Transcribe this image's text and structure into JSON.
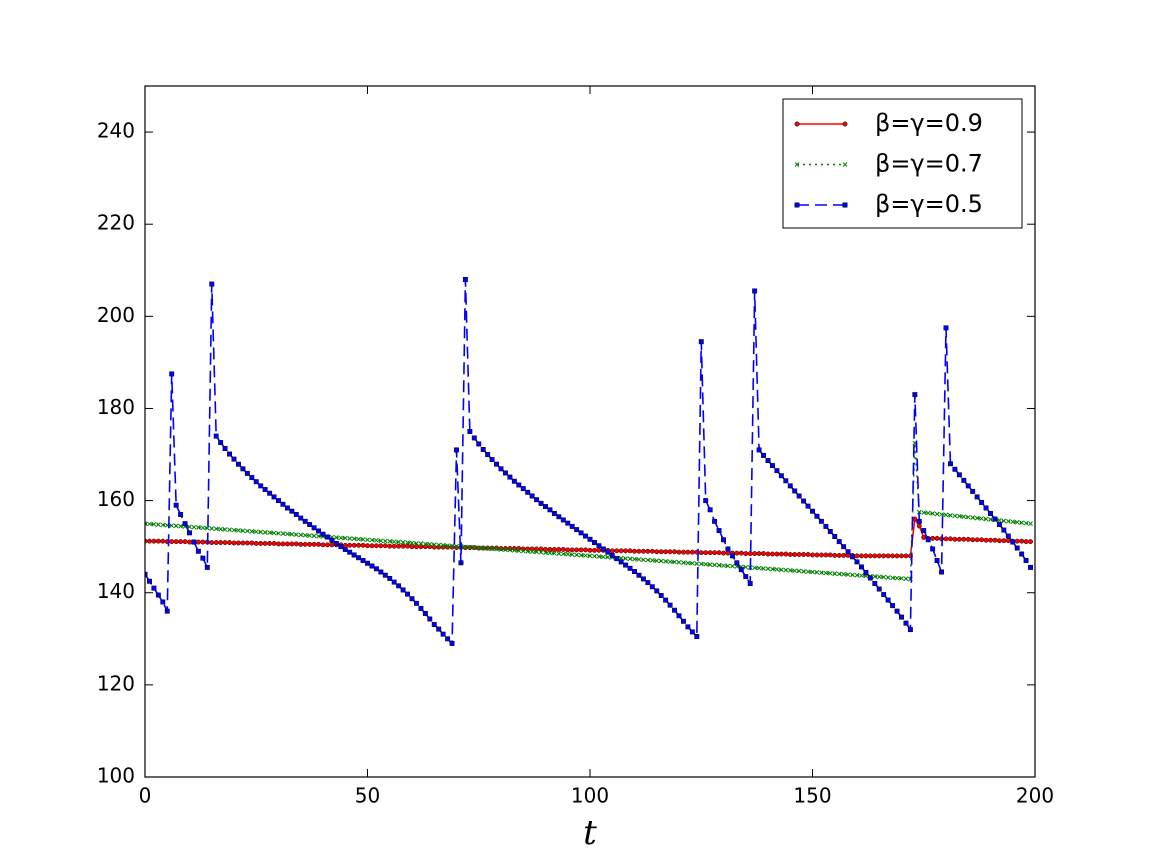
{
  "chart_data": {
    "type": "line",
    "xlabel": "t",
    "xlim": [
      0,
      200
    ],
    "ylim": [
      100,
      250
    ],
    "xticks": [
      0,
      50,
      100,
      150,
      200
    ],
    "yticks": [
      100,
      120,
      140,
      160,
      180,
      200,
      220,
      240
    ],
    "legend": "upper right",
    "x": [
      0,
      1,
      2,
      3,
      4,
      5,
      6,
      7,
      8,
      9,
      10,
      11,
      12,
      13,
      14,
      15,
      16,
      17,
      18,
      19,
      20,
      21,
      22,
      23,
      24,
      25,
      26,
      27,
      28,
      29,
      30,
      31,
      32,
      33,
      34,
      35,
      36,
      37,
      38,
      39,
      40,
      41,
      42,
      43,
      44,
      45,
      46,
      47,
      48,
      49,
      50,
      51,
      52,
      53,
      54,
      55,
      56,
      57,
      58,
      59,
      60,
      61,
      62,
      63,
      64,
      65,
      66,
      67,
      68,
      69,
      70,
      71,
      72,
      73,
      74,
      75,
      76,
      77,
      78,
      79,
      80,
      81,
      82,
      83,
      84,
      85,
      86,
      87,
      88,
      89,
      90,
      91,
      92,
      93,
      94,
      95,
      96,
      97,
      98,
      99,
      100,
      101,
      102,
      103,
      104,
      105,
      106,
      107,
      108,
      109,
      110,
      111,
      112,
      113,
      114,
      115,
      116,
      117,
      118,
      119,
      120,
      121,
      122,
      123,
      124,
      125,
      126,
      127,
      128,
      129,
      130,
      131,
      132,
      133,
      134,
      135,
      136,
      137,
      138,
      139,
      140,
      141,
      142,
      143,
      144,
      145,
      146,
      147,
      148,
      149,
      150,
      151,
      152,
      153,
      154,
      155,
      156,
      157,
      158,
      159,
      160,
      161,
      162,
      163,
      164,
      165,
      166,
      167,
      168,
      169,
      170,
      171,
      172,
      173,
      174,
      175,
      176,
      177,
      178,
      179,
      180,
      181,
      182,
      183,
      184,
      185,
      186,
      187,
      188,
      189,
      190,
      191,
      192,
      193,
      194,
      195,
      196,
      197,
      198,
      199
    ],
    "series": [
      {
        "name": "β=γ=0.9",
        "color": "#ff0000",
        "marker": "circle",
        "linestyle": "solid",
        "values": [
          151.2,
          151.2,
          151.2,
          151.2,
          151.2,
          151.1,
          151.1,
          151.1,
          151.1,
          151.1,
          151.0,
          151.0,
          151.0,
          151.0,
          151.0,
          150.9,
          150.9,
          150.9,
          150.9,
          150.9,
          150.8,
          150.8,
          150.8,
          150.8,
          150.8,
          150.7,
          150.7,
          150.7,
          150.7,
          150.7,
          150.6,
          150.6,
          150.6,
          150.6,
          150.6,
          150.5,
          150.5,
          150.5,
          150.5,
          150.5,
          150.4,
          150.4,
          150.4,
          150.4,
          150.4,
          150.3,
          150.3,
          150.3,
          150.3,
          150.3,
          150.2,
          150.2,
          150.2,
          150.2,
          150.2,
          150.1,
          150.1,
          150.1,
          150.1,
          150.1,
          150.0,
          150.0,
          150.0,
          150.0,
          150.0,
          149.9,
          149.9,
          149.9,
          149.9,
          149.9,
          149.8,
          149.8,
          149.8,
          149.8,
          149.8,
          149.7,
          149.7,
          149.7,
          149.7,
          149.7,
          149.6,
          149.6,
          149.6,
          149.6,
          149.6,
          149.5,
          149.5,
          149.5,
          149.5,
          149.5,
          149.4,
          149.4,
          149.4,
          149.4,
          149.4,
          149.3,
          149.3,
          149.3,
          149.3,
          149.3,
          149.2,
          149.2,
          149.2,
          149.2,
          149.2,
          149.1,
          149.1,
          149.1,
          149.1,
          149.1,
          149.0,
          149.0,
          149.0,
          149.0,
          149.0,
          148.9,
          148.9,
          148.9,
          148.9,
          148.9,
          148.8,
          148.8,
          148.8,
          148.8,
          148.8,
          148.7,
          148.7,
          148.7,
          148.7,
          148.7,
          148.6,
          148.6,
          148.6,
          148.6,
          148.6,
          148.5,
          148.5,
          148.5,
          148.5,
          148.5,
          148.4,
          148.4,
          148.4,
          148.4,
          148.4,
          148.3,
          148.3,
          148.3,
          148.3,
          148.3,
          148.2,
          148.2,
          148.2,
          148.2,
          148.2,
          148.1,
          148.1,
          148.1,
          148.1,
          148.1,
          148.0,
          148.0,
          148.0,
          148.0,
          148.0,
          148.0,
          148.0,
          148.0,
          148.0,
          148.0,
          148.0,
          148.0,
          148.0,
          156,
          154.5,
          152,
          151.8,
          151.8,
          151.8,
          151.7,
          151.7,
          151.7,
          151.6,
          151.6,
          151.6,
          151.6,
          151.5,
          151.5,
          151.5,
          151.4,
          151.4,
          151.4,
          151.3,
          151.3,
          151.3,
          151.2,
          151.2,
          151.2,
          151.1,
          151.1
        ]
      },
      {
        "name": "β=γ=0.7",
        "color": "#008000",
        "marker": "x",
        "linestyle": "dotted",
        "values": [
          155,
          154.93,
          154.86,
          154.79,
          154.72,
          154.65,
          154.58,
          154.51,
          154.44,
          154.37,
          154.3,
          154.23,
          154.16,
          154.09,
          154.02,
          153.95,
          153.88,
          153.81,
          153.74,
          153.67,
          153.6,
          153.53,
          153.46,
          153.39,
          153.32,
          153.25,
          153.18,
          153.11,
          153.04,
          152.97,
          152.9,
          152.83,
          152.76,
          152.69,
          152.62,
          152.55,
          152.48,
          152.41,
          152.34,
          152.27,
          152.2,
          152.13,
          152.06,
          151.99,
          151.92,
          151.85,
          151.78,
          151.71,
          151.64,
          151.57,
          151.5,
          151.43,
          151.36,
          151.29,
          151.22,
          151.15,
          151.08,
          151.01,
          150.94,
          150.87,
          150.8,
          150.73,
          150.66,
          150.59,
          150.52,
          150.45,
          150.38,
          150.31,
          150.24,
          150.17,
          150.1,
          150.03,
          149.96,
          149.89,
          149.82,
          149.75,
          149.68,
          149.61,
          149.54,
          149.47,
          149.4,
          149.33,
          149.26,
          149.19,
          149.12,
          149.05,
          148.98,
          148.91,
          148.84,
          148.77,
          148.7,
          148.63,
          148.56,
          148.49,
          148.42,
          148.35,
          148.28,
          148.21,
          148.14,
          148.07,
          148,
          147.93,
          147.86,
          147.79,
          147.72,
          147.65,
          147.58,
          147.51,
          147.44,
          147.37,
          147.3,
          147.23,
          147.16,
          147.09,
          147.02,
          146.95,
          146.88,
          146.81,
          146.74,
          146.67,
          146.6,
          146.53,
          146.46,
          146.39,
          146.32,
          146.25,
          146.18,
          146.11,
          146.04,
          145.97,
          145.9,
          145.83,
          145.76,
          145.69,
          145.62,
          145.55,
          145.48,
          145.41,
          145.34,
          145.27,
          145.2,
          145.13,
          145.06,
          144.99,
          144.92,
          144.85,
          144.78,
          144.71,
          144.64,
          144.57,
          144.5,
          144.43,
          144.36,
          144.29,
          144.22,
          144.15,
          144.08,
          144.01,
          143.94,
          143.87,
          143.8,
          143.73,
          143.66,
          143.59,
          143.52,
          143.45,
          143.38,
          143.31,
          143.24,
          143.17,
          143.1,
          143.03,
          142.96,
          172.5,
          157.5,
          157.4,
          157.3,
          157.2,
          157.1,
          157,
          156.9,
          156.8,
          156.7,
          156.6,
          156.5,
          156.4,
          156.3,
          156.2,
          156.1,
          156,
          155.9,
          155.8,
          155.7,
          155.6,
          155.5,
          155.4,
          155.3,
          155.2,
          155.1,
          155
        ]
      },
      {
        "name": "β=γ=0.5",
        "color": "#0000ff",
        "marker": "square",
        "linestyle": "dashed",
        "values": [
          144,
          142.5,
          141,
          139.5,
          138,
          136,
          187.5,
          159,
          157,
          155,
          153,
          151,
          149,
          147.5,
          145.5,
          207,
          174,
          172.6,
          171.3,
          170.1,
          169,
          167.9,
          166.9,
          165.9,
          165,
          164.1,
          163.2,
          162.4,
          161.6,
          160.8,
          160,
          159.2,
          158.4,
          157.7,
          157,
          156.2,
          155.5,
          154.8,
          154.1,
          153.4,
          152.7,
          152.1,
          151.4,
          150.7,
          150,
          149.4,
          148.8,
          148.2,
          147.6,
          147,
          146.4,
          145.8,
          145.2,
          144.5,
          143.8,
          143.1,
          142.3,
          141.5,
          140.6,
          139.7,
          138.7,
          137.7,
          136.6,
          135.5,
          134.3,
          133.1,
          132.1,
          131,
          130,
          129,
          171,
          146.5,
          208,
          175,
          173.6,
          172.3,
          171.1,
          170,
          168.9,
          167.9,
          166.9,
          166,
          165.1,
          164.2,
          163.4,
          162.6,
          161.8,
          161,
          160.2,
          159.4,
          158.7,
          158,
          157.2,
          156.5,
          155.8,
          155.1,
          154.4,
          153.7,
          153,
          152.3,
          151.6,
          150.9,
          150.2,
          149.5,
          148.8,
          148.1,
          147.4,
          146.7,
          146,
          145.3,
          144.6,
          143.8,
          143,
          142.2,
          141.3,
          140.4,
          139.4,
          138.4,
          137.3,
          136.2,
          135,
          133.8,
          132.6,
          131.5,
          130.5,
          194.5,
          160,
          158,
          155.5,
          153.5,
          151.5,
          149.5,
          148,
          146.5,
          145,
          143.5,
          142,
          205.5,
          171,
          169.8,
          168.7,
          167.6,
          166.5,
          165.4,
          164.3,
          163.2,
          162.1,
          161,
          159.9,
          158.8,
          157.7,
          156.6,
          155.5,
          154.4,
          153.3,
          152.2,
          151.1,
          150,
          148.9,
          147.8,
          146.7,
          145.6,
          144.4,
          143.2,
          142,
          140.8,
          139.6,
          138.4,
          137.2,
          136,
          134.7,
          133.4,
          132,
          183,
          155.5,
          153.5,
          151.5,
          149.5,
          147,
          144.5,
          197.5,
          168,
          166.8,
          165.6,
          164.4,
          163.2,
          162,
          160.8,
          159.6,
          158.4,
          157.2,
          156,
          154.8,
          153.6,
          152.3,
          151,
          149.7,
          148.4,
          147,
          145.5
        ]
      }
    ]
  }
}
